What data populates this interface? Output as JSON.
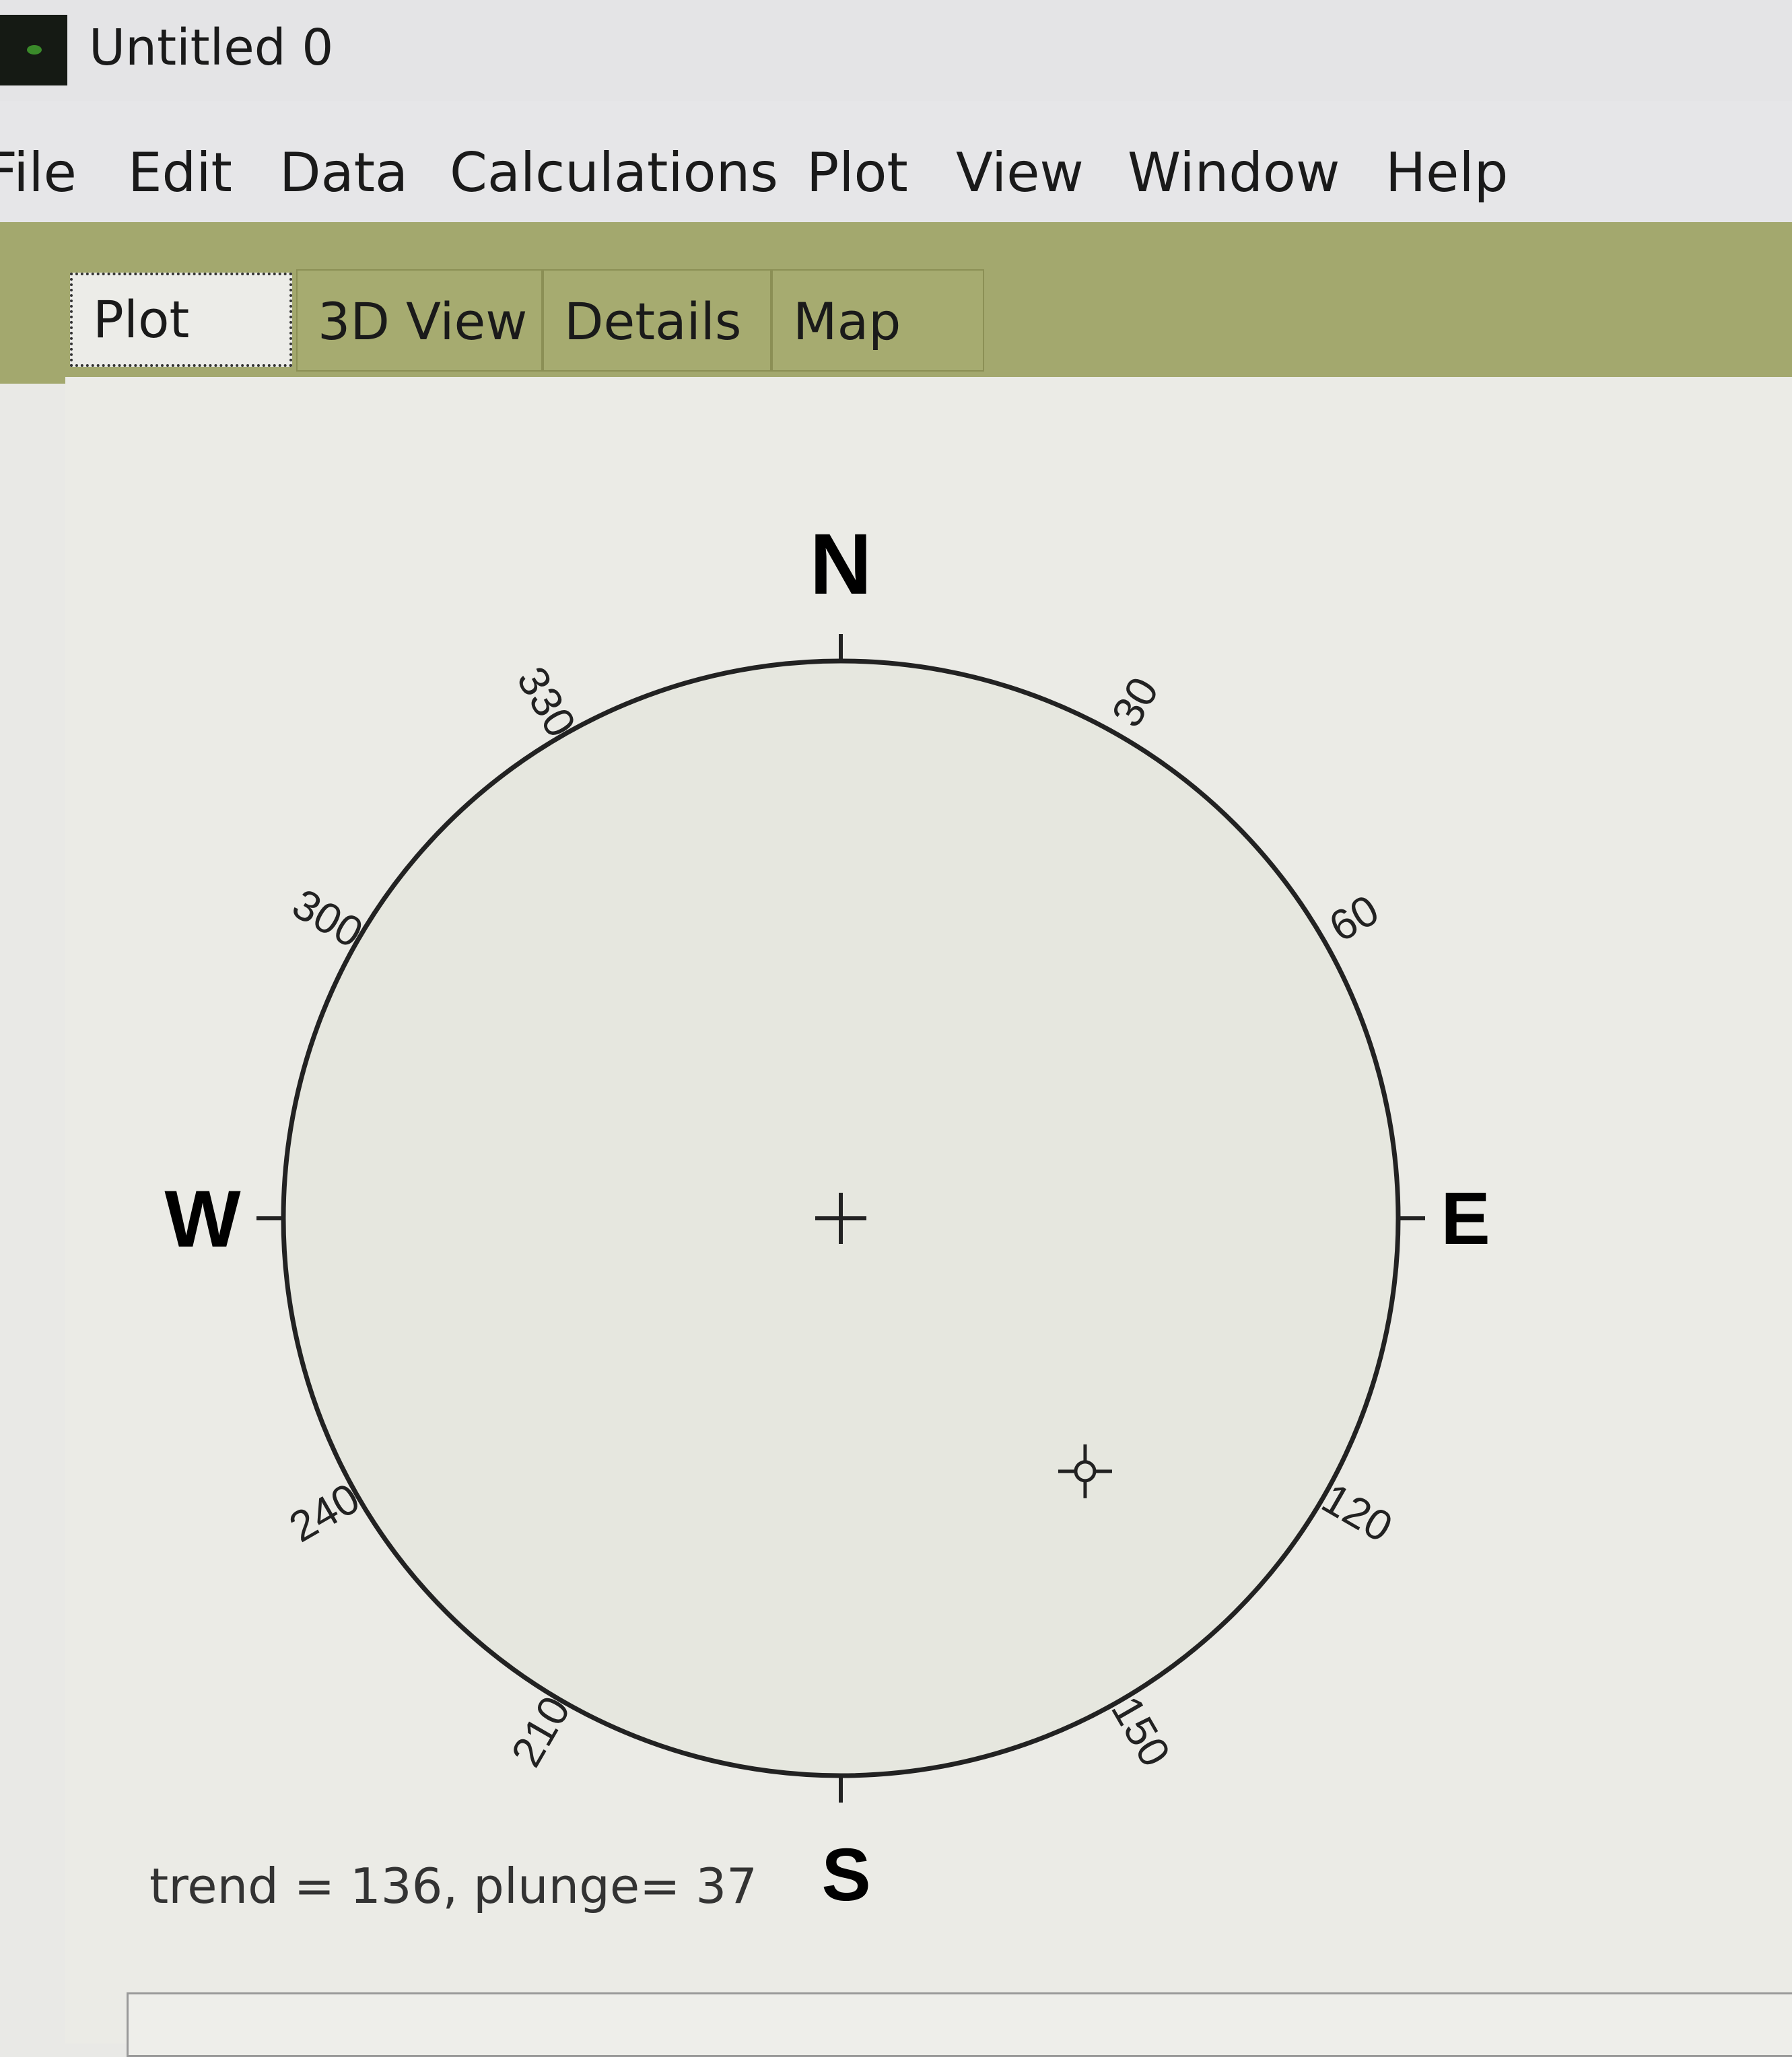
{
  "window": {
    "title": "Untitled 0"
  },
  "menu": [
    "File",
    "Edit",
    "Data",
    "Calculations",
    "Plot",
    "View",
    "Window",
    "Help"
  ],
  "tabs": [
    {
      "label": "Plot",
      "active": true
    },
    {
      "label": "3D View"
    },
    {
      "label": "Details"
    },
    {
      "label": "Map"
    }
  ],
  "stereonet": {
    "cardinals": {
      "N": "N",
      "E": "E",
      "S": "S",
      "W": "W"
    },
    "tick_labels": [
      "30",
      "60",
      "120",
      "150",
      "210",
      "240",
      "300",
      "330"
    ],
    "point": {
      "trend": 136,
      "plunge": 37
    }
  },
  "status": "trend = 136, plunge= 37",
  "colors": {
    "band": "#a3a86e",
    "background": "#ebebe6",
    "line": "#222222"
  }
}
